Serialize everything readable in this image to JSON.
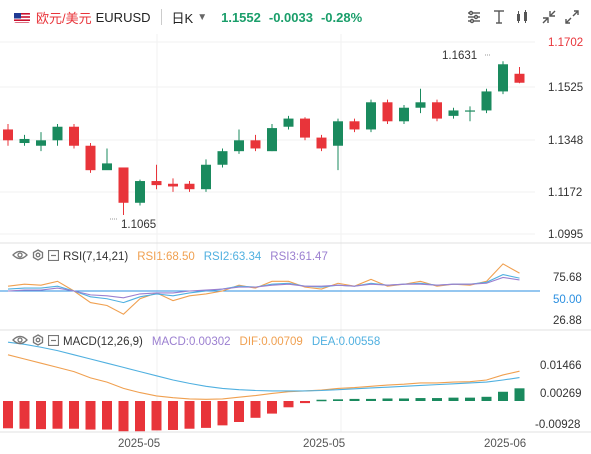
{
  "header": {
    "symbol_name": "欧元/美元",
    "symbol_code": "EURUSD",
    "period": "日K",
    "price": "1.1552",
    "change": "-0.0033",
    "change_pct": "-0.28%"
  },
  "price_axis": [
    "1.1702",
    "1.1525",
    "1.1348",
    "1.1172",
    "1.0995"
  ],
  "annotations": {
    "high": "1.1631",
    "low": "1.1065"
  },
  "rsi": {
    "name": "RSI(7,14,21)",
    "rsi1": "RSI1:68.50",
    "rsi2": "RSI2:63.34",
    "rsi3": "RSI3:61.47",
    "axis": [
      "75.68",
      "50.00",
      "26.88"
    ]
  },
  "macd": {
    "name": "MACD(12,26,9)",
    "macd": "MACD:0.00302",
    "dif": "DIF:0.00709",
    "dea": "DEA:0.00558",
    "axis": [
      "0.01466",
      "0.00269",
      "-0.00928"
    ]
  },
  "time_axis": [
    "2025-05",
    "2025-05",
    "2025-06"
  ],
  "colors": {
    "up": "#1a8a5e",
    "down": "#e8343a",
    "rsi1": "#f0a050",
    "rsi2": "#50b0e0",
    "rsi3": "#9b7fd0",
    "hline": "#2b8fe0"
  },
  "chart_data": {
    "type": "candlestick",
    "candles": [
      [
        1.138,
        1.134,
        1.14,
        1.132
      ],
      [
        1.133,
        1.1345,
        1.136,
        1.132
      ],
      [
        1.132,
        1.134,
        1.137,
        1.13
      ],
      [
        1.134,
        1.139,
        1.14,
        1.132
      ],
      [
        1.139,
        1.132,
        1.14,
        1.131
      ],
      [
        1.132,
        1.123,
        1.133,
        1.122
      ],
      [
        1.123,
        1.1255,
        1.131,
        1.124
      ],
      [
        1.124,
        1.111,
        1.124,
        1.1065
      ],
      [
        1.111,
        1.119,
        1.1195,
        1.11
      ],
      [
        1.119,
        1.1175,
        1.125,
        1.116
      ],
      [
        1.118,
        1.117,
        1.12,
        1.115
      ],
      [
        1.118,
        1.116,
        1.119,
        1.115
      ],
      [
        1.116,
        1.125,
        1.127,
        1.115
      ],
      [
        1.125,
        1.13,
        1.131,
        1.124
      ],
      [
        1.13,
        1.134,
        1.138,
        1.129
      ],
      [
        1.134,
        1.131,
        1.136,
        1.13
      ],
      [
        1.13,
        1.1385,
        1.14,
        1.13
      ],
      [
        1.139,
        1.142,
        1.143,
        1.138
      ],
      [
        1.142,
        1.135,
        1.1425,
        1.134
      ],
      [
        1.135,
        1.131,
        1.136,
        1.13
      ],
      [
        1.132,
        1.141,
        1.142,
        1.123
      ],
      [
        1.141,
        1.138,
        1.142,
        1.137
      ],
      [
        1.138,
        1.148,
        1.149,
        1.137
      ],
      [
        1.148,
        1.141,
        1.149,
        1.14
      ],
      [
        1.141,
        1.146,
        1.147,
        1.14
      ],
      [
        1.146,
        1.148,
        1.153,
        1.144
      ],
      [
        1.148,
        1.142,
        1.149,
        1.141
      ],
      [
        1.143,
        1.145,
        1.146,
        1.142
      ],
      [
        1.145,
        1.145,
        1.1465,
        1.141
      ],
      [
        1.145,
        1.152,
        1.153,
        1.144
      ],
      [
        1.152,
        1.162,
        1.1631,
        1.151
      ],
      [
        1.1585,
        1.1552,
        1.161,
        1.155
      ]
    ],
    "rsi1": [
      55,
      57,
      56,
      60,
      50,
      38,
      35,
      26,
      42,
      48,
      40,
      45,
      47,
      50,
      56,
      53,
      60,
      60,
      54,
      52,
      58,
      55,
      62,
      55,
      57,
      60,
      55,
      57,
      56,
      60,
      78,
      68.5
    ],
    "rsi2": [
      52,
      53,
      53,
      55,
      50,
      44,
      42,
      38,
      44,
      47,
      45,
      48,
      50,
      52,
      55,
      54,
      57,
      58,
      55,
      54,
      56,
      55,
      58,
      56,
      57,
      58,
      56,
      57,
      57,
      59,
      67,
      63.34
    ],
    "rsi3": [
      50,
      51,
      51,
      53,
      50,
      46,
      45,
      43,
      47,
      48,
      48,
      50,
      51,
      52,
      54,
      54,
      56,
      57,
      55,
      55,
      56,
      55,
      57,
      56,
      57,
      57,
      56,
      57,
      57,
      58,
      64,
      61.47
    ],
    "macd_hist": [
      -0.0065,
      -0.0066,
      -0.0067,
      -0.0066,
      -0.0066,
      -0.0068,
      -0.0068,
      -0.0072,
      -0.0072,
      -0.007,
      -0.0069,
      -0.0066,
      -0.0064,
      -0.0058,
      -0.005,
      -0.004,
      -0.003,
      -0.0015,
      -0.0005,
      0.0003,
      0.0004,
      0.0005,
      0.0005,
      0.0006,
      0.0006,
      0.0007,
      0.0007,
      0.0008,
      0.0008,
      0.001,
      0.0022,
      0.00302
    ],
    "dif": [
      0.011,
      0.01,
      0.009,
      0.008,
      0.007,
      0.0055,
      0.0045,
      0.003,
      0.002,
      0.0012,
      0.0008,
      0.0005,
      0.0004,
      0.0005,
      0.0009,
      0.0013,
      0.0018,
      0.0022,
      0.0024,
      0.0026,
      0.003,
      0.0032,
      0.0035,
      0.0038,
      0.004,
      0.0043,
      0.0043,
      0.0045,
      0.0046,
      0.005,
      0.0062,
      0.00709
    ],
    "dea": [
      0.014,
      0.0135,
      0.0128,
      0.012,
      0.011,
      0.01,
      0.009,
      0.008,
      0.007,
      0.006,
      0.005,
      0.0042,
      0.0035,
      0.003,
      0.0027,
      0.0025,
      0.0024,
      0.0024,
      0.0024,
      0.0025,
      0.0027,
      0.0029,
      0.0031,
      0.0033,
      0.0035,
      0.0037,
      0.0039,
      0.0041,
      0.0043,
      0.0045,
      0.005,
      0.00558
    ]
  }
}
